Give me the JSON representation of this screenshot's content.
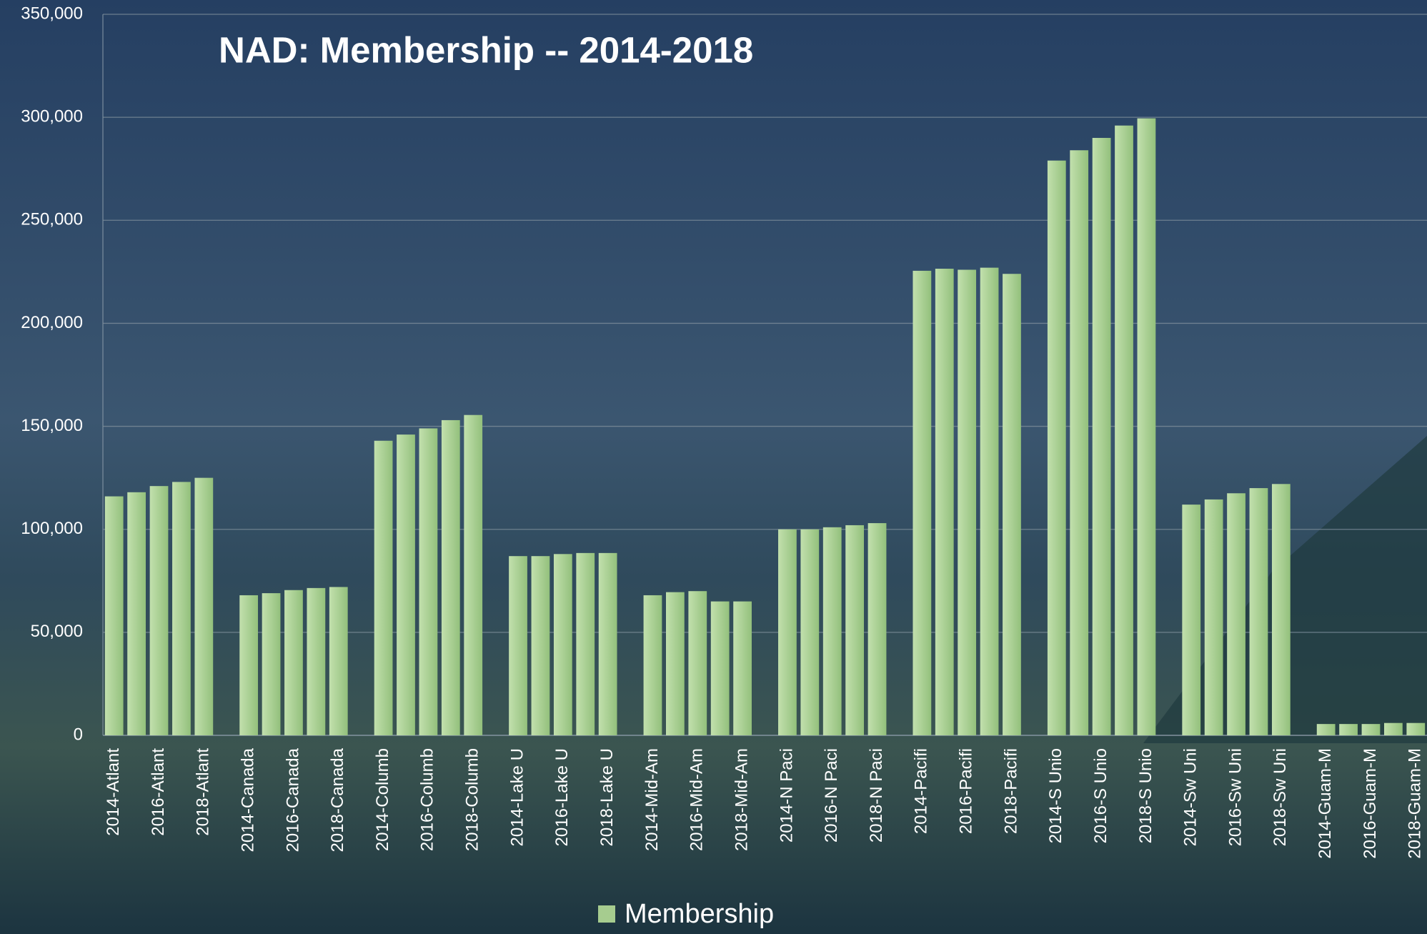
{
  "chart_data": {
    "type": "bar",
    "title": "NAD:  Membership -- 2014-2018",
    "categories": [
      "2014-Atlant",
      null,
      "2016-Atlant",
      null,
      "2018-Atlant",
      null,
      "2014-Canada",
      null,
      "2016-Canada",
      null,
      "2018-Canada",
      null,
      "2014-Columb",
      null,
      "2016-Columb",
      null,
      "2018-Columb",
      null,
      "2014-Lake U",
      null,
      "2016-Lake U",
      null,
      "2018-Lake U",
      null,
      "2014-Mid-Am",
      null,
      "2016-Mid-Am",
      null,
      "2018-Mid-Am",
      null,
      "2014-N Paci",
      null,
      "2016-N Paci",
      null,
      "2018-N Paci",
      null,
      "2014-Pacifi",
      null,
      "2016-Pacifi",
      null,
      "2018-Pacifi",
      null,
      "2014-S Unio",
      null,
      "2016-S Unio",
      null,
      "2018-S Unio",
      null,
      "2014-Sw Uni",
      null,
      "2016-Sw Uni",
      null,
      "2018-Sw Uni",
      null,
      "2014-Guam-M",
      null,
      "2016-Guam-M",
      null,
      "2018-Guam-M"
    ],
    "series": [
      {
        "name": "Membership",
        "color": "#a6cc8f",
        "values": [
          116000,
          118000,
          121000,
          123000,
          125000,
          null,
          68000,
          69000,
          70500,
          71500,
          72000,
          null,
          143000,
          146000,
          149000,
          153000,
          155500,
          null,
          87000,
          87000,
          88000,
          88500,
          88500,
          null,
          68000,
          69500,
          70000,
          65000,
          65000,
          null,
          100000,
          100000,
          101000,
          102000,
          103000,
          null,
          225500,
          226500,
          226000,
          227000,
          224000,
          null,
          279000,
          284000,
          290000,
          296000,
          299500,
          null,
          112000,
          114500,
          117500,
          120000,
          122000,
          null,
          5500,
          5500,
          5500,
          6000,
          6000
        ]
      }
    ],
    "ylim": [
      0,
      350000
    ],
    "yticks": [
      0,
      {
        "value": 50000,
        "label": "50,000"
      },
      {
        "value": 100000,
        "label": "100,000"
      },
      {
        "value": 150000,
        "label": "150,000"
      },
      {
        "value": 200000,
        "label": "200,000"
      },
      {
        "value": 250000,
        "label": "250,000"
      },
      {
        "value": 300000,
        "label": "300,000"
      },
      {
        "value": 350000,
        "label": "350,000"
      }
    ],
    "grid": true,
    "legend": "bottom"
  }
}
